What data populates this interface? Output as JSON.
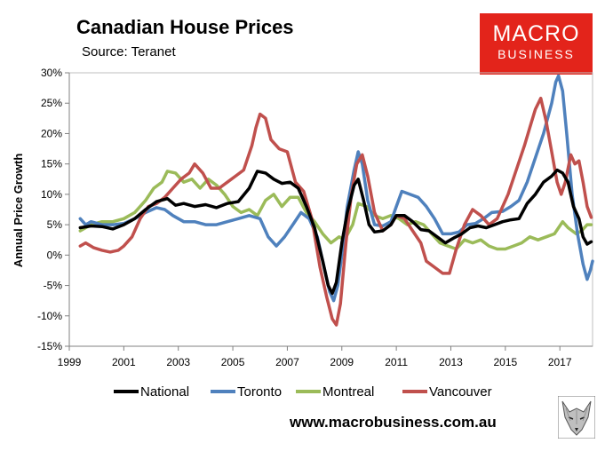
{
  "header": {
    "title": "Canadian House Prices",
    "source": "Source: Teranet"
  },
  "logo": {
    "top": "MACRO",
    "bottom": "BUSINESS"
  },
  "footer": {
    "website": "www.macrobusiness.com.au"
  },
  "colors": {
    "national": "#000000",
    "toronto": "#4f81bd",
    "montreal": "#9bbb59",
    "vancouver": "#c0504d",
    "logo": "#e3241b"
  },
  "chart_data": {
    "type": "line",
    "title": "Canadian House Prices",
    "ylabel": "Annual Price Growth",
    "xlabel": "",
    "xlim": [
      1999,
      2018.2
    ],
    "ylim": [
      -15,
      30
    ],
    "x_ticks": [
      1999,
      2001,
      2003,
      2005,
      2007,
      2009,
      2011,
      2013,
      2015,
      2017
    ],
    "x_tick_labels": [
      "1999",
      "2001",
      "2003",
      "2005",
      "2007",
      "2009",
      "2011",
      "2013",
      "2015",
      "2017"
    ],
    "y_ticks": [
      30,
      25,
      20,
      15,
      10,
      5,
      0,
      -5,
      -10,
      -15
    ],
    "y_tick_labels": [
      "30%",
      "25%",
      "20%",
      "15%",
      "10%",
      "5%",
      "0%",
      "-5%",
      "-10%",
      "-15%"
    ],
    "legend_position": "bottom",
    "series": [
      {
        "name": "National",
        "color": "#000000",
        "points": [
          [
            1999.4,
            4.5
          ],
          [
            1999.8,
            4.8
          ],
          [
            2000.2,
            4.7
          ],
          [
            2000.6,
            4.3
          ],
          [
            2001.0,
            5.0
          ],
          [
            2001.4,
            6.0
          ],
          [
            2001.8,
            7.5
          ],
          [
            2002.2,
            8.8
          ],
          [
            2002.6,
            9.3
          ],
          [
            2002.9,
            8.2
          ],
          [
            2003.2,
            8.5
          ],
          [
            2003.6,
            8.0
          ],
          [
            2004.0,
            8.3
          ],
          [
            2004.4,
            7.8
          ],
          [
            2004.8,
            8.5
          ],
          [
            2005.2,
            8.8
          ],
          [
            2005.6,
            11.0
          ],
          [
            2005.9,
            13.8
          ],
          [
            2006.2,
            13.5
          ],
          [
            2006.5,
            12.5
          ],
          [
            2006.8,
            11.8
          ],
          [
            2007.1,
            12.0
          ],
          [
            2007.4,
            11.0
          ],
          [
            2007.7,
            8.0
          ],
          [
            2008.0,
            4.5
          ],
          [
            2008.3,
            -1.0
          ],
          [
            2008.5,
            -5.0
          ],
          [
            2008.65,
            -6.3
          ],
          [
            2008.8,
            -4.5
          ],
          [
            2009.0,
            2.0
          ],
          [
            2009.2,
            7.0
          ],
          [
            2009.45,
            11.5
          ],
          [
            2009.6,
            12.5
          ],
          [
            2009.8,
            9.0
          ],
          [
            2010.0,
            5.0
          ],
          [
            2010.2,
            3.8
          ],
          [
            2010.5,
            4.0
          ],
          [
            2010.8,
            5.0
          ],
          [
            2011.0,
            6.5
          ],
          [
            2011.3,
            6.5
          ],
          [
            2011.6,
            5.5
          ],
          [
            2011.9,
            4.2
          ],
          [
            2012.2,
            4.0
          ],
          [
            2012.5,
            3.0
          ],
          [
            2012.8,
            2.0
          ],
          [
            2013.1,
            2.8
          ],
          [
            2013.4,
            3.5
          ],
          [
            2013.7,
            4.5
          ],
          [
            2014.0,
            4.8
          ],
          [
            2014.3,
            4.5
          ],
          [
            2014.6,
            5.0
          ],
          [
            2014.9,
            5.5
          ],
          [
            2015.2,
            5.8
          ],
          [
            2015.5,
            6.0
          ],
          [
            2015.8,
            8.5
          ],
          [
            2016.1,
            10.0
          ],
          [
            2016.4,
            12.0
          ],
          [
            2016.7,
            13.0
          ],
          [
            2016.9,
            14.0
          ],
          [
            2017.1,
            13.5
          ],
          [
            2017.3,
            12.0
          ],
          [
            2017.5,
            8.0
          ],
          [
            2017.7,
            6.0
          ],
          [
            2017.85,
            3.0
          ],
          [
            2018.0,
            1.8
          ],
          [
            2018.15,
            2.2
          ]
        ]
      },
      {
        "name": "Toronto",
        "color": "#4f81bd",
        "points": [
          [
            1999.4,
            6.0
          ],
          [
            1999.6,
            5.0
          ],
          [
            1999.8,
            5.5
          ],
          [
            2000.2,
            5.0
          ],
          [
            2000.6,
            5.0
          ],
          [
            2001.0,
            5.2
          ],
          [
            2001.4,
            6.0
          ],
          [
            2001.8,
            7.0
          ],
          [
            2002.2,
            7.8
          ],
          [
            2002.5,
            7.5
          ],
          [
            2002.8,
            6.5
          ],
          [
            2003.2,
            5.5
          ],
          [
            2003.6,
            5.5
          ],
          [
            2004.0,
            5.0
          ],
          [
            2004.4,
            5.0
          ],
          [
            2004.8,
            5.5
          ],
          [
            2005.2,
            6.0
          ],
          [
            2005.6,
            6.5
          ],
          [
            2006.0,
            6.0
          ],
          [
            2006.3,
            3.0
          ],
          [
            2006.6,
            1.5
          ],
          [
            2006.9,
            3.0
          ],
          [
            2007.2,
            5.0
          ],
          [
            2007.5,
            7.0
          ],
          [
            2007.8,
            6.0
          ],
          [
            2008.1,
            3.0
          ],
          [
            2008.35,
            -2.0
          ],
          [
            2008.55,
            -6.0
          ],
          [
            2008.7,
            -7.5
          ],
          [
            2008.85,
            -5.0
          ],
          [
            2009.0,
            0.0
          ],
          [
            2009.2,
            8.0
          ],
          [
            2009.45,
            14.0
          ],
          [
            2009.6,
            17.0
          ],
          [
            2009.75,
            15.0
          ],
          [
            2009.95,
            9.0
          ],
          [
            2010.2,
            5.0
          ],
          [
            2010.5,
            4.8
          ],
          [
            2010.8,
            5.5
          ],
          [
            2011.0,
            8.0
          ],
          [
            2011.2,
            10.5
          ],
          [
            2011.5,
            10.0
          ],
          [
            2011.8,
            9.5
          ],
          [
            2012.1,
            8.0
          ],
          [
            2012.4,
            6.0
          ],
          [
            2012.7,
            3.5
          ],
          [
            2013.0,
            3.5
          ],
          [
            2013.3,
            3.8
          ],
          [
            2013.6,
            5.0
          ],
          [
            2013.9,
            5.2
          ],
          [
            2014.2,
            6.0
          ],
          [
            2014.5,
            7.0
          ],
          [
            2014.9,
            7.2
          ],
          [
            2015.2,
            8.0
          ],
          [
            2015.5,
            9.0
          ],
          [
            2015.8,
            12.0
          ],
          [
            2016.1,
            16.0
          ],
          [
            2016.4,
            20.0
          ],
          [
            2016.7,
            25.0
          ],
          [
            2016.85,
            28.5
          ],
          [
            2016.95,
            29.5
          ],
          [
            2017.1,
            27.0
          ],
          [
            2017.25,
            20.0
          ],
          [
            2017.45,
            10.0
          ],
          [
            2017.65,
            3.5
          ],
          [
            2017.85,
            -1.5
          ],
          [
            2018.0,
            -4.0
          ],
          [
            2018.12,
            -2.5
          ],
          [
            2018.2,
            -1.0
          ]
        ]
      },
      {
        "name": "Montreal",
        "color": "#9bbb59",
        "points": [
          [
            1999.4,
            4.0
          ],
          [
            1999.8,
            5.0
          ],
          [
            2000.2,
            5.5
          ],
          [
            2000.6,
            5.5
          ],
          [
            2001.0,
            6.0
          ],
          [
            2001.4,
            7.0
          ],
          [
            2001.8,
            9.0
          ],
          [
            2002.1,
            11.0
          ],
          [
            2002.4,
            12.0
          ],
          [
            2002.6,
            13.8
          ],
          [
            2002.9,
            13.5
          ],
          [
            2003.2,
            12.0
          ],
          [
            2003.5,
            12.5
          ],
          [
            2003.8,
            11.0
          ],
          [
            2004.1,
            12.5
          ],
          [
            2004.4,
            11.5
          ],
          [
            2004.7,
            10.0
          ],
          [
            2005.0,
            8.0
          ],
          [
            2005.3,
            7.0
          ],
          [
            2005.6,
            7.5
          ],
          [
            2005.9,
            6.5
          ],
          [
            2006.2,
            9.0
          ],
          [
            2006.5,
            10.0
          ],
          [
            2006.8,
            8.0
          ],
          [
            2007.1,
            9.5
          ],
          [
            2007.4,
            9.5
          ],
          [
            2007.7,
            7.0
          ],
          [
            2008.0,
            5.5
          ],
          [
            2008.3,
            3.5
          ],
          [
            2008.6,
            2.0
          ],
          [
            2008.9,
            3.0
          ],
          [
            2009.1,
            2.5
          ],
          [
            2009.4,
            5.0
          ],
          [
            2009.6,
            8.5
          ],
          [
            2009.9,
            8.0
          ],
          [
            2010.2,
            6.5
          ],
          [
            2010.5,
            6.0
          ],
          [
            2010.8,
            6.5
          ],
          [
            2011.1,
            6.0
          ],
          [
            2011.4,
            5.0
          ],
          [
            2011.7,
            5.5
          ],
          [
            2012.0,
            5.0
          ],
          [
            2012.3,
            3.5
          ],
          [
            2012.6,
            2.0
          ],
          [
            2012.9,
            1.5
          ],
          [
            2013.2,
            1.0
          ],
          [
            2013.5,
            2.5
          ],
          [
            2013.8,
            2.0
          ],
          [
            2014.1,
            2.5
          ],
          [
            2014.4,
            1.5
          ],
          [
            2014.7,
            1.0
          ],
          [
            2015.0,
            1.0
          ],
          [
            2015.3,
            1.5
          ],
          [
            2015.6,
            2.0
          ],
          [
            2015.9,
            3.0
          ],
          [
            2016.2,
            2.5
          ],
          [
            2016.5,
            3.0
          ],
          [
            2016.8,
            3.5
          ],
          [
            2017.1,
            5.5
          ],
          [
            2017.3,
            4.5
          ],
          [
            2017.6,
            3.5
          ],
          [
            2017.8,
            4.0
          ],
          [
            2018.0,
            5.0
          ],
          [
            2018.15,
            5.0
          ]
        ]
      },
      {
        "name": "Vancouver",
        "color": "#c0504d",
        "points": [
          [
            1999.4,
            1.5
          ],
          [
            1999.6,
            2.0
          ],
          [
            1999.9,
            1.2
          ],
          [
            2000.2,
            0.8
          ],
          [
            2000.5,
            0.5
          ],
          [
            2000.8,
            0.8
          ],
          [
            2001.0,
            1.5
          ],
          [
            2001.3,
            3.0
          ],
          [
            2001.6,
            6.0
          ],
          [
            2001.9,
            8.0
          ],
          [
            2002.2,
            8.5
          ],
          [
            2002.5,
            9.5
          ],
          [
            2002.8,
            11.0
          ],
          [
            2003.1,
            12.5
          ],
          [
            2003.4,
            13.5
          ],
          [
            2003.6,
            15.0
          ],
          [
            2003.9,
            13.5
          ],
          [
            2004.2,
            11.0
          ],
          [
            2004.5,
            11.0
          ],
          [
            2004.8,
            12.0
          ],
          [
            2005.1,
            13.0
          ],
          [
            2005.4,
            14.0
          ],
          [
            2005.7,
            18.0
          ],
          [
            2005.85,
            21.0
          ],
          [
            2006.0,
            23.2
          ],
          [
            2006.2,
            22.5
          ],
          [
            2006.4,
            19.0
          ],
          [
            2006.7,
            17.5
          ],
          [
            2007.0,
            17.0
          ],
          [
            2007.3,
            12.0
          ],
          [
            2007.6,
            10.5
          ],
          [
            2007.9,
            6.0
          ],
          [
            2008.2,
            -2.0
          ],
          [
            2008.45,
            -7.0
          ],
          [
            2008.65,
            -10.5
          ],
          [
            2008.8,
            -11.5
          ],
          [
            2008.95,
            -8.0
          ],
          [
            2009.15,
            2.0
          ],
          [
            2009.35,
            10.0
          ],
          [
            2009.55,
            15.0
          ],
          [
            2009.75,
            16.5
          ],
          [
            2009.95,
            13.0
          ],
          [
            2010.2,
            7.0
          ],
          [
            2010.5,
            4.0
          ],
          [
            2010.8,
            5.0
          ],
          [
            2011.0,
            6.5
          ],
          [
            2011.3,
            6.0
          ],
          [
            2011.6,
            4.0
          ],
          [
            2011.9,
            2.0
          ],
          [
            2012.1,
            -1.0
          ],
          [
            2012.4,
            -2.0
          ],
          [
            2012.7,
            -3.0
          ],
          [
            2012.95,
            -3.0
          ],
          [
            2013.2,
            1.0
          ],
          [
            2013.5,
            5.0
          ],
          [
            2013.8,
            7.5
          ],
          [
            2014.1,
            6.5
          ],
          [
            2014.4,
            5.0
          ],
          [
            2014.7,
            6.0
          ],
          [
            2014.9,
            8.0
          ],
          [
            2015.1,
            10.0
          ],
          [
            2015.4,
            14.0
          ],
          [
            2015.7,
            18.0
          ],
          [
            2015.9,
            21.0
          ],
          [
            2016.1,
            24.0
          ],
          [
            2016.3,
            25.8
          ],
          [
            2016.5,
            22.0
          ],
          [
            2016.7,
            17.0
          ],
          [
            2016.9,
            12.0
          ],
          [
            2017.05,
            10.0
          ],
          [
            2017.2,
            12.0
          ],
          [
            2017.4,
            16.5
          ],
          [
            2017.55,
            15.0
          ],
          [
            2017.7,
            15.5
          ],
          [
            2017.85,
            12.0
          ],
          [
            2018.0,
            8.0
          ],
          [
            2018.15,
            6.2
          ]
        ]
      }
    ]
  }
}
